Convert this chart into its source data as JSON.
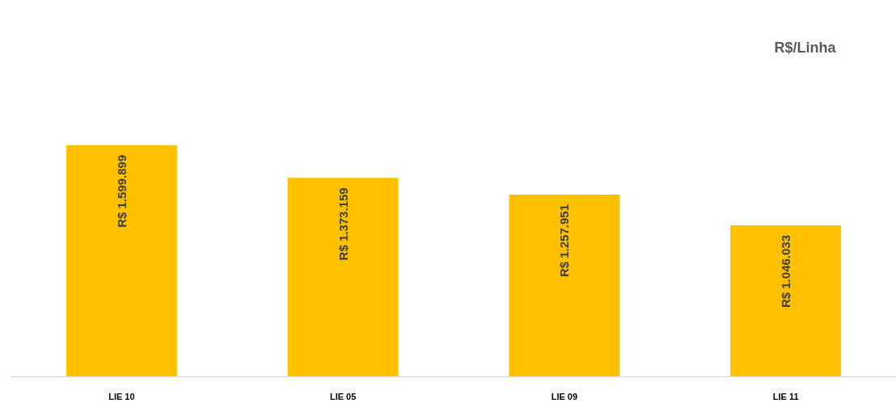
{
  "chart_data": {
    "type": "bar",
    "title": "R$/Linha",
    "categories": [
      "LIE 10",
      "LIE 05",
      "LIE 09",
      "LIE 11"
    ],
    "values": [
      1599899,
      1373159,
      1257951,
      1046033
    ],
    "value_labels": [
      "R$ 1.599.899",
      "R$ 1.373.159",
      "R$ 1.257.951",
      "R$ 1.046.033"
    ],
    "color": "#ffc000"
  }
}
